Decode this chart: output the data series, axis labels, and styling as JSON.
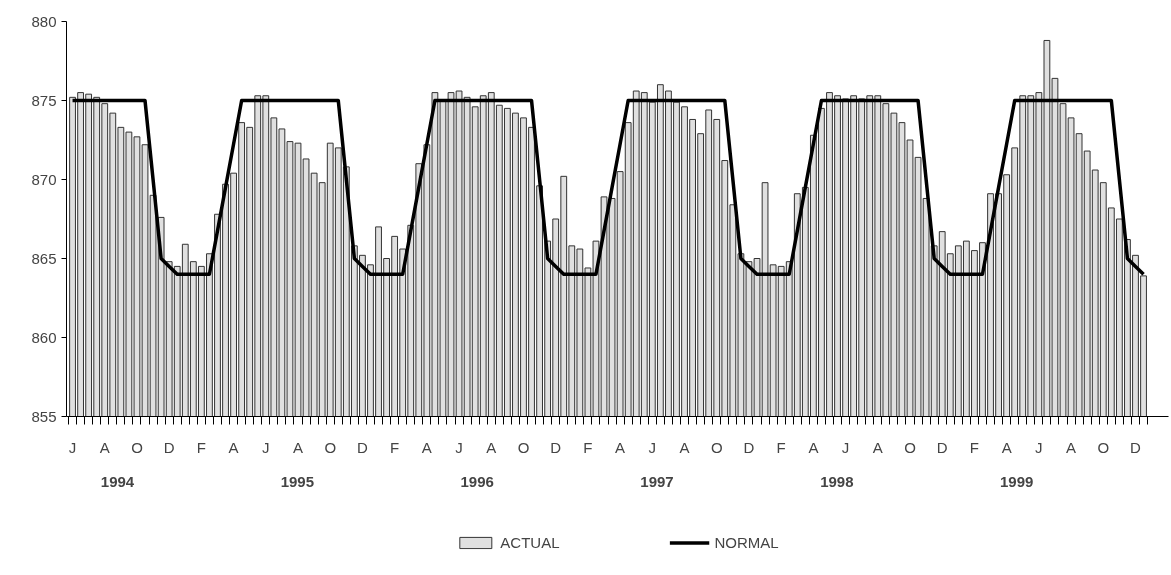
{
  "chart_data": {
    "type": "bar",
    "annotations": [
      "1994",
      "1995",
      "1996",
      "1997",
      "1998",
      "1999"
    ],
    "ylim": [
      855,
      880
    ],
    "yticks": [
      855,
      860,
      865,
      870,
      875,
      880
    ],
    "categories": [
      "J",
      null,
      null,
      null,
      "A",
      null,
      null,
      null,
      "O",
      null,
      null,
      null,
      "D",
      null,
      null,
      null,
      "F",
      null,
      null,
      null,
      "A",
      null,
      null,
      null,
      "J",
      null,
      null,
      null,
      "A",
      null,
      null,
      null,
      "O",
      null,
      null,
      null,
      "D",
      null,
      null,
      null,
      "F",
      null,
      null,
      null,
      "A",
      null,
      null,
      null,
      "J",
      null,
      null,
      null,
      "A",
      null,
      null,
      null,
      "O",
      null,
      null,
      null,
      "D",
      null,
      null,
      null,
      "F",
      null,
      null,
      null,
      "A",
      null,
      null,
      null,
      "J",
      null,
      null,
      null,
      "A",
      null,
      null,
      null,
      "O",
      null,
      null,
      null,
      "D",
      null,
      null,
      null,
      "F",
      null,
      null,
      null,
      "A",
      null,
      null,
      null,
      "J",
      null,
      null,
      null,
      "A",
      null,
      null,
      null,
      "O",
      null,
      null,
      null,
      "D",
      null,
      null,
      null,
      "F",
      null,
      null,
      null,
      "A",
      null,
      null,
      null,
      "J",
      null,
      null,
      null,
      "A",
      null,
      null,
      null,
      "O",
      null,
      null,
      null,
      "D",
      null
    ],
    "legend": "bottom",
    "series": [
      {
        "name": "ACTUAL",
        "color": "#e0e0e0",
        "values": [
          875.2,
          875.5,
          875.4,
          875.2,
          874.8,
          874.2,
          873.3,
          873.0,
          872.7,
          872.2,
          869.0,
          867.6,
          864.8,
          864.5,
          865.9,
          864.8,
          864.5,
          865.3,
          867.8,
          869.7,
          870.4,
          873.6,
          873.3,
          875.3,
          875.3,
          873.9,
          873.2,
          872.4,
          872.3,
          871.3,
          870.4,
          869.8,
          872.3,
          872.0,
          870.8,
          865.8,
          865.2,
          864.6,
          867.0,
          865.0,
          866.4,
          865.6,
          867.1,
          871.0,
          872.2,
          875.5,
          875.0,
          875.5,
          875.6,
          875.2,
          874.6,
          875.3,
          875.5,
          874.7,
          874.5,
          874.2,
          873.9,
          873.3,
          869.6,
          866.1,
          867.5,
          870.2,
          865.8,
          865.6,
          864.4,
          866.1,
          868.9,
          868.8,
          870.5,
          873.6,
          875.6,
          875.5,
          874.9,
          876.0,
          875.6,
          874.9,
          874.6,
          873.8,
          872.9,
          874.4,
          873.8,
          871.2,
          868.4,
          865.3,
          864.8,
          865.0,
          869.8,
          864.6,
          864.5,
          864.8,
          869.1,
          869.5,
          872.8,
          874.5,
          875.5,
          875.3,
          875.1,
          875.3,
          875.1,
          875.3,
          875.3,
          874.8,
          874.2,
          873.6,
          872.5,
          871.4,
          868.8,
          865.8,
          866.7,
          865.3,
          865.8,
          866.1,
          865.5,
          866.0,
          869.1,
          869.1,
          870.3,
          872.0,
          875.3,
          875.3,
          875.5,
          878.8,
          876.4,
          874.8,
          873.9,
          872.9,
          871.8,
          870.6,
          869.8,
          868.2,
          867.5,
          866.2,
          865.2,
          863.9
        ]
      },
      {
        "name": "NORMAL",
        "type": "line",
        "color": "#000000",
        "values": [
          875,
          875,
          875,
          875,
          875,
          875,
          875,
          875,
          875,
          875,
          870,
          865,
          864.5,
          864,
          864,
          864,
          864,
          864,
          866.75,
          869.5,
          872.25,
          875,
          875,
          875,
          875,
          875,
          875,
          875,
          875,
          875,
          875,
          875,
          875,
          875,
          870,
          865,
          864.5,
          864,
          864,
          864,
          864,
          864,
          866.75,
          869.5,
          872.25,
          875,
          875,
          875,
          875,
          875,
          875,
          875,
          875,
          875,
          875,
          875,
          875,
          875,
          870,
          865,
          864.5,
          864,
          864,
          864,
          864,
          864,
          866.75,
          869.5,
          872.25,
          875,
          875,
          875,
          875,
          875,
          875,
          875,
          875,
          875,
          875,
          875,
          875,
          875,
          870,
          865,
          864.5,
          864,
          864,
          864,
          864,
          864,
          866.75,
          869.5,
          872.25,
          875,
          875,
          875,
          875,
          875,
          875,
          875,
          875,
          875,
          875,
          875,
          875,
          875,
          870,
          865,
          864.5,
          864,
          864,
          864,
          864,
          864,
          866.75,
          869.5,
          872.25,
          875,
          875,
          875,
          875,
          875,
          875,
          875,
          875,
          875,
          875,
          875,
          875,
          875,
          870,
          865,
          864.5,
          864
        ]
      }
    ]
  }
}
